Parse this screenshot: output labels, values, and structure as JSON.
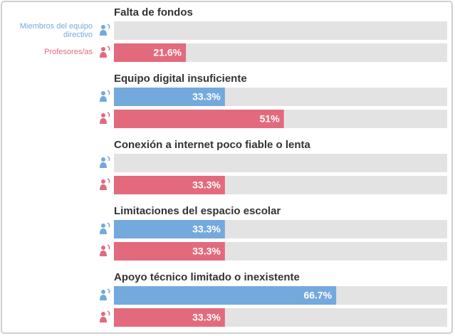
{
  "chart_data": {
    "type": "bar",
    "orientation": "horizontal",
    "categories": [
      "Falta de fondos",
      "Equipo digital insuficiente",
      "Conexión a internet poco fiable o lenta",
      "Limitaciones del espacio escolar",
      "Apoyo técnico limitado o inexistente"
    ],
    "series": [
      {
        "name": "Miembros del equipo directivo",
        "color": "#74a9dd",
        "values": [
          null,
          33.3,
          null,
          33.3,
          66.7
        ],
        "value_labels": [
          null,
          "33.3%",
          null,
          "33.3%",
          "66.7%"
        ]
      },
      {
        "name": "Profesores/as",
        "color": "#e36a7c",
        "values": [
          21.6,
          51,
          33.3,
          33.3,
          33.3
        ],
        "value_labels": [
          "21.6%",
          "51%",
          "33.3%",
          "33.3%",
          "33.3%"
        ]
      }
    ],
    "xlim": [
      0,
      100
    ]
  }
}
